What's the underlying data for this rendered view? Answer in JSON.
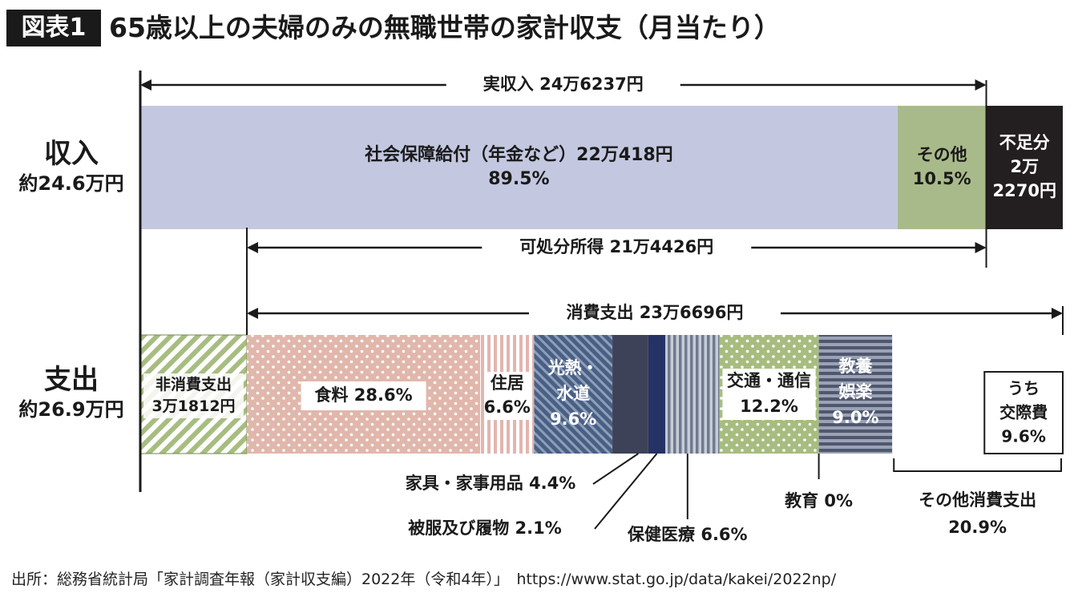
{
  "header": {
    "badge": "図表1",
    "title": "65歳以上の夫婦のみの無職世帯の家計収支（月当たり）"
  },
  "rows": {
    "income": {
      "label": "収入",
      "sub": "約24.6万円"
    },
    "expense": {
      "label": "支出",
      "sub": "約26.9万円"
    }
  },
  "source": "出所：総務省統計局「家計調査年報（家計収支編）2022年（令和4年）」　https://www.stat.go.jp/data/kakei/2022np/",
  "chart_data": {
    "type": "bar",
    "orientation": "horizontal",
    "stacked": true,
    "unit": "円",
    "income": {
      "segments": [
        {
          "key": "social",
          "lines": [
            "社会保障給付（年金など）22万418円",
            "89.5%"
          ],
          "value": 220418,
          "percent": 89.5,
          "color": "#c3c8e0",
          "text_color": "#1a1a1a"
        },
        {
          "key": "other",
          "lines": [
            "その他",
            "10.5%"
          ],
          "value": 25819,
          "percent": 10.5,
          "color": "#a9ba8a",
          "text_color": "#1a1a1a"
        },
        {
          "key": "shortfall",
          "lines": [
            "不足分",
            "2万",
            "2270円"
          ],
          "value": 22270,
          "color": "#231f20",
          "text_color": "#ffffff"
        }
      ]
    },
    "expense": {
      "segments": [
        {
          "key": "nonconsumption",
          "lines": [
            "非消費支出",
            "3万1812円"
          ],
          "value": 31812,
          "pattern": "diag",
          "color": "#a7bd80"
        },
        {
          "key": "food",
          "lines": [
            "食料 28.6%"
          ],
          "percent": 28.6,
          "pattern": "dots",
          "color": "#e1b7ac"
        },
        {
          "key": "housing",
          "lines": [
            "住居",
            "6.6%"
          ],
          "percent": 6.6,
          "pattern": "vstripe",
          "color": "#e2b5ae"
        },
        {
          "key": "utilities",
          "lines": [
            "光熱・",
            "水道",
            "9.6%"
          ],
          "percent": 9.6,
          "pattern": "diagdark",
          "color": "#4f6588",
          "text_color": "#ffffff"
        },
        {
          "key": "furniture",
          "lines": [],
          "percent": 4.4,
          "color": "#3d4259"
        },
        {
          "key": "clothing",
          "lines": [],
          "percent": 2.1,
          "color": "#243265"
        },
        {
          "key": "medical",
          "lines": [],
          "percent": 6.6,
          "pattern": "vstripegray",
          "color": "#8790a3"
        },
        {
          "key": "transport",
          "lines": [
            "交通・通信",
            "12.2%"
          ],
          "percent": 12.2,
          "pattern": "dotsgreen",
          "color": "#a7bd80"
        },
        {
          "key": "education",
          "lines": [],
          "percent": 0
        },
        {
          "key": "culture",
          "lines": [
            "教養",
            "娯楽",
            "9.0%"
          ],
          "percent": 9.0,
          "pattern": "hstripe",
          "color": "#4f5770",
          "text_color": "#ffffff"
        },
        {
          "key": "otherconsumption",
          "lines": [],
          "percent": 20.9,
          "color": "#ffffff"
        }
      ]
    },
    "spans": {
      "actual_income": "実収入 24万6237円",
      "disposable_income": "可処分所得 21万4426円",
      "consumption": "消費支出 23万6696円"
    },
    "inset": {
      "lines": [
        "うち",
        "交際費",
        "9.6%"
      ],
      "percent": 9.6
    },
    "callouts": {
      "furniture": "家具・家事用品 4.4%",
      "clothing": "被服及び履物 2.1%",
      "medical": "保健医療 6.6%",
      "education": "教育 0%",
      "otherconsumption": [
        "その他消費支出",
        "20.9%"
      ]
    }
  }
}
